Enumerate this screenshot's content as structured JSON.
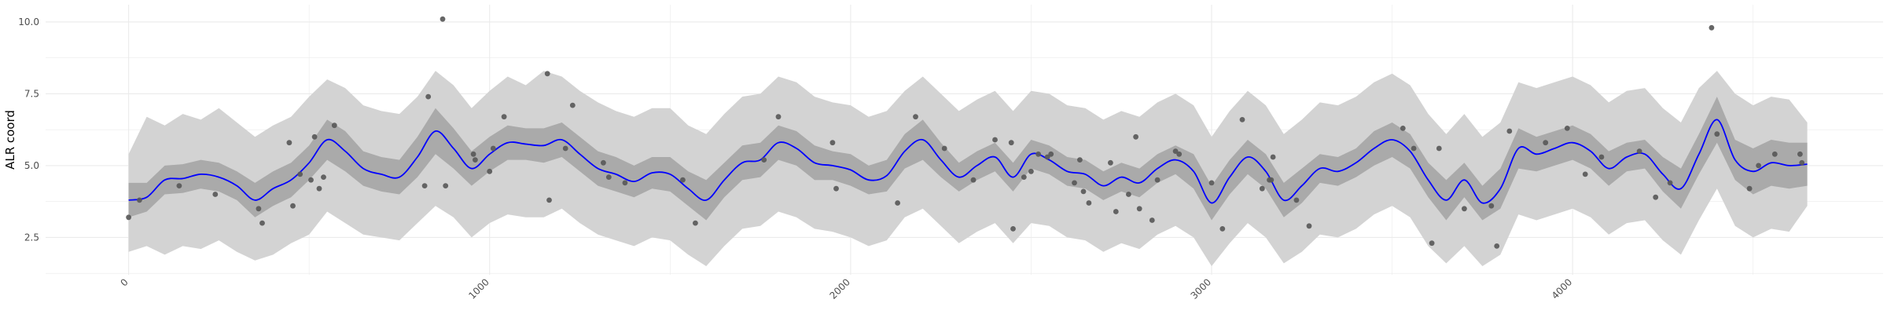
{
  "chart_data": {
    "type": "line",
    "title": "",
    "xlabel": "",
    "ylabel": "ALR coord",
    "xlim": [
      -230,
      4860
    ],
    "ylim": [
      1.2,
      10.6
    ],
    "x_ticks": [
      0,
      1000,
      2000,
      3000,
      4000
    ],
    "x_tick_labels": [
      "0",
      "1000",
      "2000",
      "3000",
      "4000"
    ],
    "y_ticks": [
      2.5,
      5.0,
      7.5,
      10.0
    ],
    "y_tick_labels": [
      "2.5",
      "5.0",
      "7.5",
      "10.0"
    ],
    "grid": true,
    "legend": "none",
    "colors": {
      "fit_line": "#0000ff",
      "inner_band": "#aaaaaa",
      "outer_band": "#d3d3d3",
      "points": "#595959",
      "grid": "#ebebeb"
    },
    "fit": {
      "x": [
        0,
        50,
        100,
        150,
        200,
        250,
        300,
        350,
        400,
        450,
        500,
        550,
        600,
        650,
        700,
        750,
        800,
        850,
        900,
        950,
        1000,
        1050,
        1100,
        1150,
        1200,
        1250,
        1300,
        1350,
        1400,
        1450,
        1500,
        1550,
        1600,
        1650,
        1700,
        1750,
        1800,
        1850,
        1900,
        1950,
        2000,
        2050,
        2100,
        2150,
        2200,
        2250,
        2300,
        2350,
        2400,
        2450,
        2500,
        2550,
        2600,
        2650,
        2700,
        2750,
        2800,
        2850,
        2900,
        2950,
        3000,
        3050,
        3100,
        3150,
        3200,
        3250,
        3300,
        3350,
        3400,
        3450,
        3500,
        3550,
        3600,
        3650,
        3700,
        3750,
        3800,
        3850,
        3900,
        3950,
        4000,
        4050,
        4100,
        4150,
        4200,
        4250,
        4300,
        4350,
        4400,
        4450,
        4500,
        4550,
        4600,
        4650
      ],
      "y": [
        3.8,
        3.9,
        4.5,
        4.55,
        4.7,
        4.6,
        4.3,
        3.8,
        4.2,
        4.5,
        5.1,
        5.9,
        5.5,
        4.9,
        4.7,
        4.6,
        5.3,
        6.2,
        5.6,
        4.9,
        5.4,
        5.8,
        5.75,
        5.7,
        5.9,
        5.4,
        4.9,
        4.7,
        4.45,
        4.75,
        4.7,
        4.2,
        3.8,
        4.5,
        5.1,
        5.2,
        5.8,
        5.6,
        5.1,
        5.0,
        4.85,
        4.5,
        4.65,
        5.5,
        5.9,
        5.2,
        4.6,
        5.0,
        5.3,
        4.6,
        5.4,
        5.2,
        4.8,
        4.7,
        4.3,
        4.6,
        4.4,
        4.9,
        5.2,
        4.8,
        3.7,
        4.6,
        5.3,
        4.8,
        3.8,
        4.3,
        4.9,
        4.8,
        5.1,
        5.6,
        5.9,
        5.5,
        4.5,
        3.8,
        4.5,
        3.7,
        4.2,
        5.6,
        5.4,
        5.6,
        5.8,
        5.5,
        4.9,
        5.3,
        5.4,
        4.7,
        4.2,
        5.4,
        6.6,
        5.2,
        4.8,
        5.1,
        5.0,
        5.05
      ],
      "inner_lower": [
        3.2,
        3.4,
        4.0,
        4.05,
        4.2,
        4.1,
        3.8,
        3.2,
        3.6,
        3.9,
        4.5,
        5.2,
        4.8,
        4.3,
        4.1,
        4.0,
        4.6,
        5.4,
        4.9,
        4.3,
        4.8,
        5.2,
        5.2,
        5.1,
        5.3,
        4.8,
        4.3,
        4.1,
        3.9,
        4.2,
        4.1,
        3.6,
        3.1,
        3.9,
        4.5,
        4.6,
        5.2,
        5.0,
        4.5,
        4.5,
        4.3,
        4.0,
        4.1,
        4.9,
        5.2,
        4.6,
        4.1,
        4.5,
        4.8,
        4.1,
        4.9,
        4.7,
        4.3,
        4.2,
        3.8,
        4.1,
        3.9,
        4.4,
        4.7,
        4.2,
        3.1,
        4.0,
        4.7,
        4.2,
        3.2,
        3.7,
        4.4,
        4.3,
        4.6,
        5.0,
        5.3,
        4.9,
        3.9,
        3.1,
        3.9,
        3.1,
        3.5,
        4.9,
        4.8,
        5.0,
        5.2,
        4.9,
        4.3,
        4.8,
        4.9,
        4.1,
        3.5,
        4.7,
        5.8,
        4.5,
        4.0,
        4.3,
        4.2,
        4.3
      ],
      "inner_upper": [
        4.4,
        4.4,
        5.0,
        5.05,
        5.2,
        5.1,
        4.8,
        4.4,
        4.8,
        5.1,
        5.7,
        6.6,
        6.2,
        5.5,
        5.3,
        5.2,
        6.0,
        7.0,
        6.3,
        5.5,
        6.0,
        6.4,
        6.3,
        6.3,
        6.5,
        6.0,
        5.5,
        5.3,
        5.0,
        5.3,
        5.3,
        4.8,
        4.5,
        5.1,
        5.7,
        5.8,
        6.4,
        6.2,
        5.7,
        5.5,
        5.4,
        5.0,
        5.2,
        6.1,
        6.6,
        5.8,
        5.1,
        5.5,
        5.8,
        5.1,
        5.9,
        5.7,
        5.3,
        5.2,
        4.8,
        5.1,
        4.9,
        5.4,
        5.7,
        5.4,
        4.3,
        5.2,
        5.9,
        5.4,
        4.4,
        4.9,
        5.4,
        5.3,
        5.6,
        6.2,
        6.5,
        6.1,
        5.1,
        4.5,
        5.1,
        4.3,
        4.9,
        6.3,
        6.0,
        6.2,
        6.4,
        6.1,
        5.5,
        5.8,
        5.9,
        5.3,
        4.9,
        6.1,
        7.4,
        5.9,
        5.6,
        5.9,
        5.8,
        5.8
      ],
      "outer_lower": [
        2.0,
        2.2,
        1.9,
        2.2,
        2.1,
        2.4,
        2.0,
        1.7,
        1.9,
        2.3,
        2.6,
        3.4,
        3.0,
        2.6,
        2.5,
        2.4,
        3.0,
        3.6,
        3.2,
        2.5,
        3.0,
        3.3,
        3.2,
        3.2,
        3.5,
        3.0,
        2.6,
        2.4,
        2.2,
        2.5,
        2.4,
        1.9,
        1.5,
        2.2,
        2.8,
        2.9,
        3.4,
        3.2,
        2.8,
        2.7,
        2.5,
        2.2,
        2.4,
        3.2,
        3.5,
        2.9,
        2.3,
        2.7,
        3.0,
        2.3,
        3.0,
        2.9,
        2.5,
        2.4,
        2.0,
        2.3,
        2.1,
        2.6,
        2.9,
        2.5,
        1.5,
        2.3,
        3.0,
        2.5,
        1.6,
        2.0,
        2.6,
        2.5,
        2.8,
        3.3,
        3.6,
        3.2,
        2.2,
        1.6,
        2.2,
        1.5,
        1.9,
        3.3,
        3.1,
        3.3,
        3.5,
        3.2,
        2.6,
        3.0,
        3.1,
        2.4,
        1.9,
        3.1,
        4.2,
        2.9,
        2.5,
        2.8,
        2.7,
        3.6
      ],
      "outer_upper": [
        5.4,
        6.7,
        6.4,
        6.8,
        6.6,
        7.0,
        6.5,
        6.0,
        6.4,
        6.7,
        7.4,
        8.0,
        7.7,
        7.1,
        6.9,
        6.8,
        7.4,
        8.3,
        7.8,
        7.0,
        7.6,
        8.1,
        7.8,
        8.3,
        8.1,
        7.6,
        7.2,
        6.9,
        6.7,
        7.0,
        7.0,
        6.4,
        6.1,
        6.8,
        7.4,
        7.5,
        8.1,
        7.9,
        7.4,
        7.2,
        7.1,
        6.7,
        6.9,
        7.6,
        8.1,
        7.5,
        6.9,
        7.3,
        7.6,
        6.9,
        7.6,
        7.5,
        7.1,
        7.0,
        6.6,
        6.9,
        6.7,
        7.2,
        7.5,
        7.1,
        6.0,
        6.9,
        7.6,
        7.1,
        6.1,
        6.6,
        7.2,
        7.1,
        7.4,
        7.9,
        8.2,
        7.8,
        6.8,
        6.1,
        6.8,
        6.0,
        6.5,
        7.9,
        7.7,
        7.9,
        8.1,
        7.8,
        7.2,
        7.6,
        7.7,
        7.0,
        6.5,
        7.7,
        8.3,
        7.5,
        7.1,
        7.4,
        7.3,
        6.5
      ]
    },
    "points": {
      "x": [
        0,
        30,
        140,
        240,
        360,
        370,
        445,
        455,
        475,
        505,
        515,
        528,
        540,
        570,
        820,
        830,
        870,
        878,
        955,
        960,
        1000,
        1010,
        1040,
        1160,
        1165,
        1210,
        1230,
        1315,
        1330,
        1375,
        1535,
        1570,
        1760,
        1800,
        1950,
        1960,
        2130,
        2180,
        2260,
        2340,
        2400,
        2445,
        2450,
        2480,
        2500,
        2520,
        2545,
        2555,
        2620,
        2635,
        2645,
        2660,
        2720,
        2735,
        2770,
        2790,
        2800,
        2835,
        2850,
        2900,
        2910,
        3000,
        3030,
        3085,
        3140,
        3160,
        3165,
        3170,
        3235,
        3270,
        3530,
        3560,
        3610,
        3630,
        3700,
        3775,
        3790,
        3825,
        3925,
        3985,
        4035,
        4080,
        4185,
        4230,
        4270,
        4385,
        4400,
        4490,
        4515,
        4560,
        4630,
        4635
      ],
      "y": [
        3.2,
        3.8,
        4.3,
        4.0,
        3.5,
        3.0,
        5.8,
        3.6,
        4.7,
        4.5,
        6.0,
        4.2,
        4.6,
        6.4,
        4.3,
        7.4,
        10.1,
        4.3,
        5.4,
        5.2,
        4.8,
        5.6,
        6.7,
        8.2,
        3.8,
        5.6,
        7.1,
        5.1,
        4.6,
        4.4,
        4.5,
        3.0,
        5.2,
        6.7,
        5.8,
        4.2,
        3.7,
        6.7,
        5.6,
        4.5,
        5.9,
        5.8,
        2.8,
        4.6,
        4.8,
        5.4,
        5.3,
        5.4,
        4.4,
        5.2,
        4.1,
        3.7,
        5.1,
        3.4,
        4.0,
        6.0,
        3.5,
        3.1,
        4.5,
        5.5,
        5.4,
        4.4,
        2.8,
        6.6,
        4.2,
        4.5,
        4.5,
        5.3,
        3.8,
        2.9,
        6.3,
        5.6,
        2.3,
        5.6,
        3.5,
        3.6,
        2.2,
        6.2,
        5.8,
        6.3,
        4.7,
        5.3,
        5.5,
        3.9,
        4.4,
        9.8,
        6.1,
        4.2,
        5.0,
        5.4,
        5.4,
        5.1
      ]
    }
  }
}
